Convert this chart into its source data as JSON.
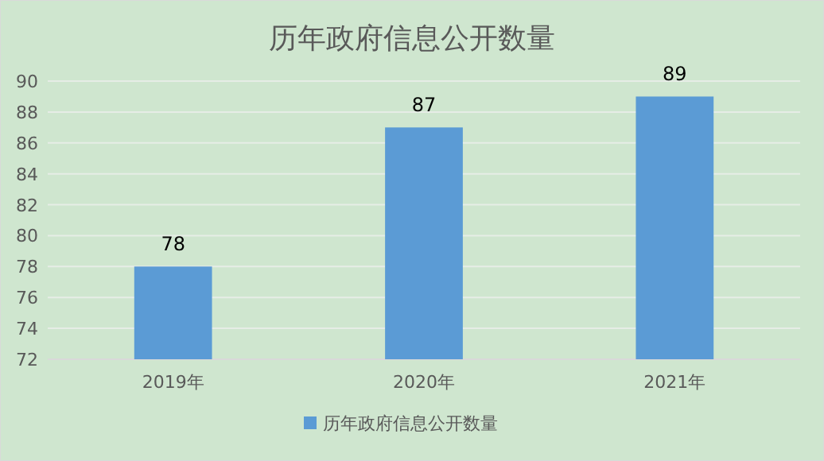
{
  "chart_data": {
    "type": "bar",
    "title": "历年政府信息公开数量",
    "categories": [
      "2019年",
      "2020年",
      "2021年"
    ],
    "series": [
      {
        "name": "历年政府信息公开数量",
        "color": "#5b9bd5",
        "values": [
          78,
          87,
          89
        ]
      }
    ],
    "ylim": [
      72,
      90
    ],
    "yticks": [
      72,
      74,
      76,
      78,
      80,
      82,
      84,
      86,
      88,
      90
    ],
    "grid": "y",
    "legend": "bottom",
    "data_labels": true
  }
}
